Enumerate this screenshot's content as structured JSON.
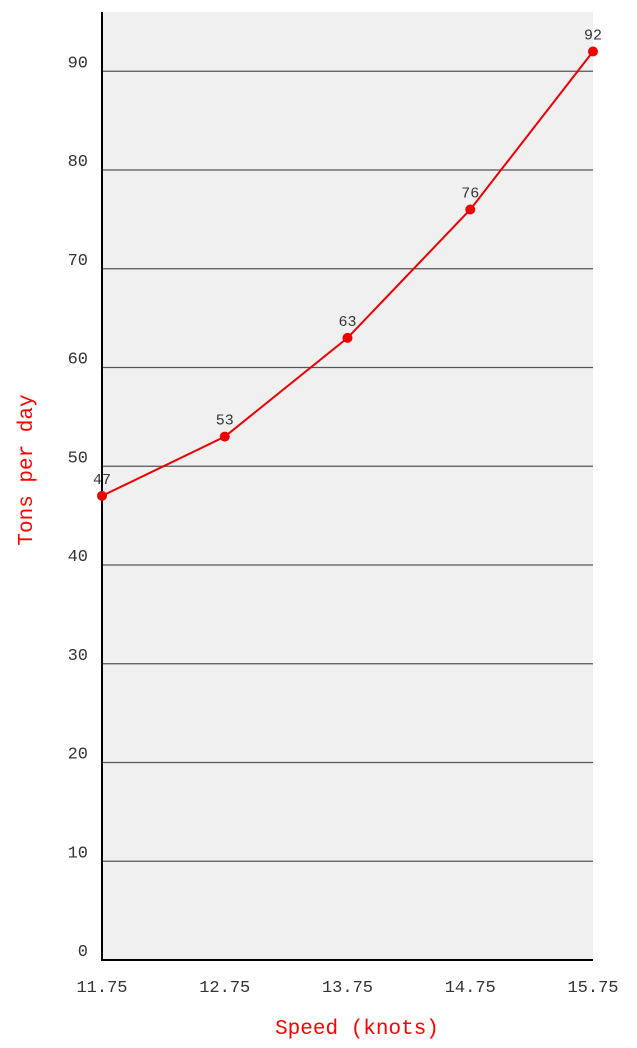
{
  "chart_data": {
    "type": "line",
    "x": [
      11.75,
      12.75,
      13.75,
      14.75,
      15.75
    ],
    "x_tick_labels": [
      "11.75",
      "12.75",
      "13.75",
      "14.75",
      "15.75"
    ],
    "series": [
      {
        "values": [
          47,
          53,
          63,
          76,
          92
        ],
        "color": "#ee0000"
      }
    ],
    "data_labels": [
      "47",
      "53",
      "63",
      "76",
      "92"
    ],
    "xlabel": "Speed (knots)",
    "ylabel": "Tons per day",
    "y_ticks": [
      0,
      10,
      20,
      30,
      40,
      50,
      60,
      70,
      80,
      90
    ],
    "y_tick_labels": [
      "0",
      "10",
      "20",
      "30",
      "40",
      "50",
      "60",
      "70",
      "80",
      "90"
    ],
    "xlim": [
      11.75,
      15.75
    ],
    "ylim": [
      0,
      96
    ],
    "grid": "horizontal",
    "legend": "none",
    "colors": {
      "plot_background": "#f0f0f0",
      "gridline": "#555555",
      "axis_title": "#ff0000",
      "line": "#ee0000"
    }
  }
}
